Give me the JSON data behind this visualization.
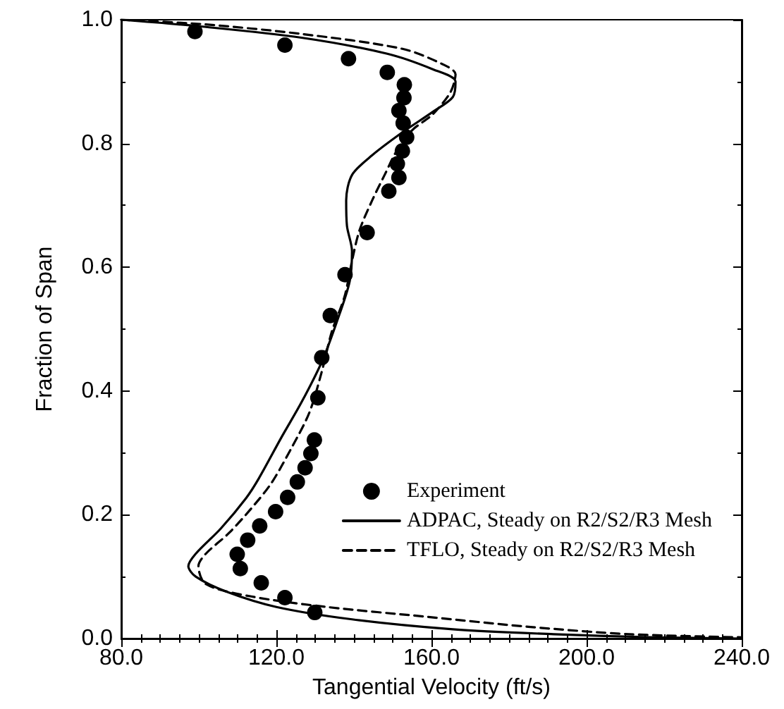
{
  "chart_data": {
    "type": "scatter",
    "xlabel": "Tangential Velocity (ft/s)",
    "ylabel": "Fraction of Span",
    "xlim": [
      80,
      240
    ],
    "xticks": [
      {
        "value": 80,
        "label": "80.0"
      },
      {
        "value": 120,
        "label": "120.0"
      },
      {
        "value": 160,
        "label": "160.0"
      },
      {
        "value": 200,
        "label": "200.0"
      },
      {
        "value": 240,
        "label": "240.0"
      }
    ],
    "ylim": [
      0,
      1
    ],
    "yticks": [
      {
        "value": 0,
        "label": "0.0"
      },
      {
        "value": 0.2,
        "label": "0.2"
      },
      {
        "value": 0.4,
        "label": "0.4"
      },
      {
        "value": 0.6,
        "label": "0.6"
      },
      {
        "value": 0.8,
        "label": "0.8"
      },
      {
        "value": 1,
        "label": "1.0"
      }
    ],
    "grid": false,
    "legend": "bottom right",
    "series": [
      {
        "name": "Experiment",
        "color": "#000000",
        "marker": "circle",
        "x": [
          99.0,
          122.2,
          138.6,
          148.6,
          153.0,
          152.9,
          151.6,
          152.7,
          153.6,
          152.5,
          151.2,
          151.6,
          149.0,
          143.4,
          137.7,
          133.9,
          131.7,
          130.7,
          129.8,
          128.9,
          127.4,
          125.4,
          122.9,
          119.8,
          115.7,
          112.6,
          109.9,
          110.7,
          116.1,
          122.2,
          129.9
        ],
        "values": [
          0.981,
          0.959,
          0.937,
          0.915,
          0.895,
          0.874,
          0.853,
          0.833,
          0.81,
          0.788,
          0.767,
          0.745,
          0.723,
          0.656,
          0.588,
          0.522,
          0.454,
          0.389,
          0.321,
          0.299,
          0.276,
          0.253,
          0.228,
          0.205,
          0.182,
          0.159,
          0.136,
          0.113,
          0.09,
          0.066,
          0.042
        ]
      },
      {
        "name": "ADPAC, Steady on R2/S2/R3 Mesh",
        "type": "line",
        "color": "#000000",
        "marker": "none",
        "line_style": "solid",
        "x": [
          80,
          99,
          126.5,
          148.6,
          160.3,
          166.2,
          165.5,
          160.3,
          152.5,
          144.7,
          139.5,
          138.0,
          138.2,
          139.5,
          138.9,
          135.6,
          131.7,
          126.5,
          121.3,
          115.5,
          112.2,
          105.7,
          99.2,
          97.3,
          99.2,
          107,
          120,
          139.5,
          165.5,
          191.5,
          217.5,
          240
        ],
        "values": [
          1.0,
          0.99,
          0.971,
          0.945,
          0.92,
          0.9,
          0.875,
          0.851,
          0.818,
          0.781,
          0.749,
          0.708,
          0.667,
          0.626,
          0.577,
          0.512,
          0.447,
          0.382,
          0.325,
          0.259,
          0.227,
          0.178,
          0.137,
          0.117,
          0.1,
          0.076,
          0.051,
          0.031,
          0.015,
          0.007,
          0.002,
          0
        ]
      },
      {
        "name": "TFLO, Steady on R2/S2/R3 Mesh",
        "type": "line",
        "color": "#000000",
        "marker": "none",
        "line_style": "dashed",
        "x": [
          80,
          100.5,
          126.5,
          152.5,
          162.9,
          166.2,
          164.9,
          160.3,
          155.1,
          151.2,
          147.9,
          144.7,
          141.4,
          139.5,
          137.6,
          134.3,
          131.7,
          128.5,
          123.9,
          118.7,
          113.5,
          107.7,
          101.8,
          99.9,
          101.8,
          113.5,
          133,
          159,
          185,
          211,
          240
        ],
        "values": [
          1.0,
          0.993,
          0.977,
          0.953,
          0.928,
          0.912,
          0.883,
          0.847,
          0.822,
          0.79,
          0.749,
          0.708,
          0.659,
          0.61,
          0.553,
          0.496,
          0.431,
          0.365,
          0.308,
          0.251,
          0.21,
          0.17,
          0.137,
          0.117,
          0.088,
          0.068,
          0.051,
          0.035,
          0.019,
          0.007,
          0.002
        ]
      }
    ]
  }
}
